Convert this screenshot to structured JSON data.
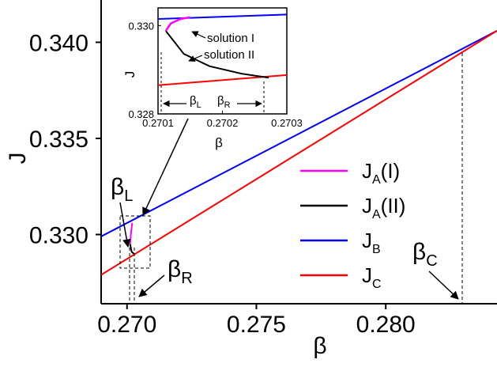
{
  "chart_data": {
    "type": "line",
    "xlabel": "β",
    "ylabel": "J",
    "xlim": [
      0.269,
      0.2843
    ],
    "ylim": [
      0.3264,
      0.3422
    ],
    "xticks": [
      "0.270",
      "0.275",
      "0.280"
    ],
    "yticks": [
      "0.330",
      "0.335",
      "0.340"
    ],
    "legend_position": "lower-right",
    "series": [
      {
        "name": "J",
        "sub": "A",
        "suffix": "(I)",
        "color": "#ff00ff",
        "x": [
          0.27012,
          0.27015,
          0.2702
        ],
        "y": [
          0.3295,
          0.33,
          0.3306
        ]
      },
      {
        "name": "J",
        "sub": "A",
        "suffix": "(II)",
        "color": "#000000",
        "x": [
          0.27012,
          0.27018,
          0.27027
        ],
        "y": [
          0.3295,
          0.3291,
          0.329
        ]
      },
      {
        "name": "J",
        "sub": "B",
        "suffix": "",
        "color": "#0000ff",
        "x": [
          0.269,
          0.2843
        ],
        "y": [
          0.3299,
          0.3406
        ]
      },
      {
        "name": "J",
        "sub": "C",
        "suffix": "",
        "color": "#ff0000",
        "x": [
          0.269,
          0.2843
        ],
        "y": [
          0.3279,
          0.3406
        ]
      }
    ],
    "annotations": [
      {
        "id": "beta-l",
        "main": "β",
        "sub": "L"
      },
      {
        "id": "beta-r",
        "main": "β",
        "sub": "R"
      },
      {
        "id": "beta-c",
        "main": "β",
        "sub": "C",
        "x": 0.2825
      }
    ],
    "inset": {
      "xlabel": "β",
      "ylabel": "J",
      "xlim": [
        0.2701,
        0.2703
      ],
      "ylim": [
        0.328,
        0.3304
      ],
      "xticks": [
        "0.2701",
        "0.2702",
        "0.2703"
      ],
      "yticks": [
        "0.328",
        "0.330"
      ],
      "labels": [
        "solution I",
        "solution II"
      ],
      "beta_l": {
        "main": "β",
        "sub": "L",
        "x": 0.270112
      },
      "beta_r": {
        "main": "β",
        "sub": "R",
        "x": 0.270272
      }
    }
  }
}
